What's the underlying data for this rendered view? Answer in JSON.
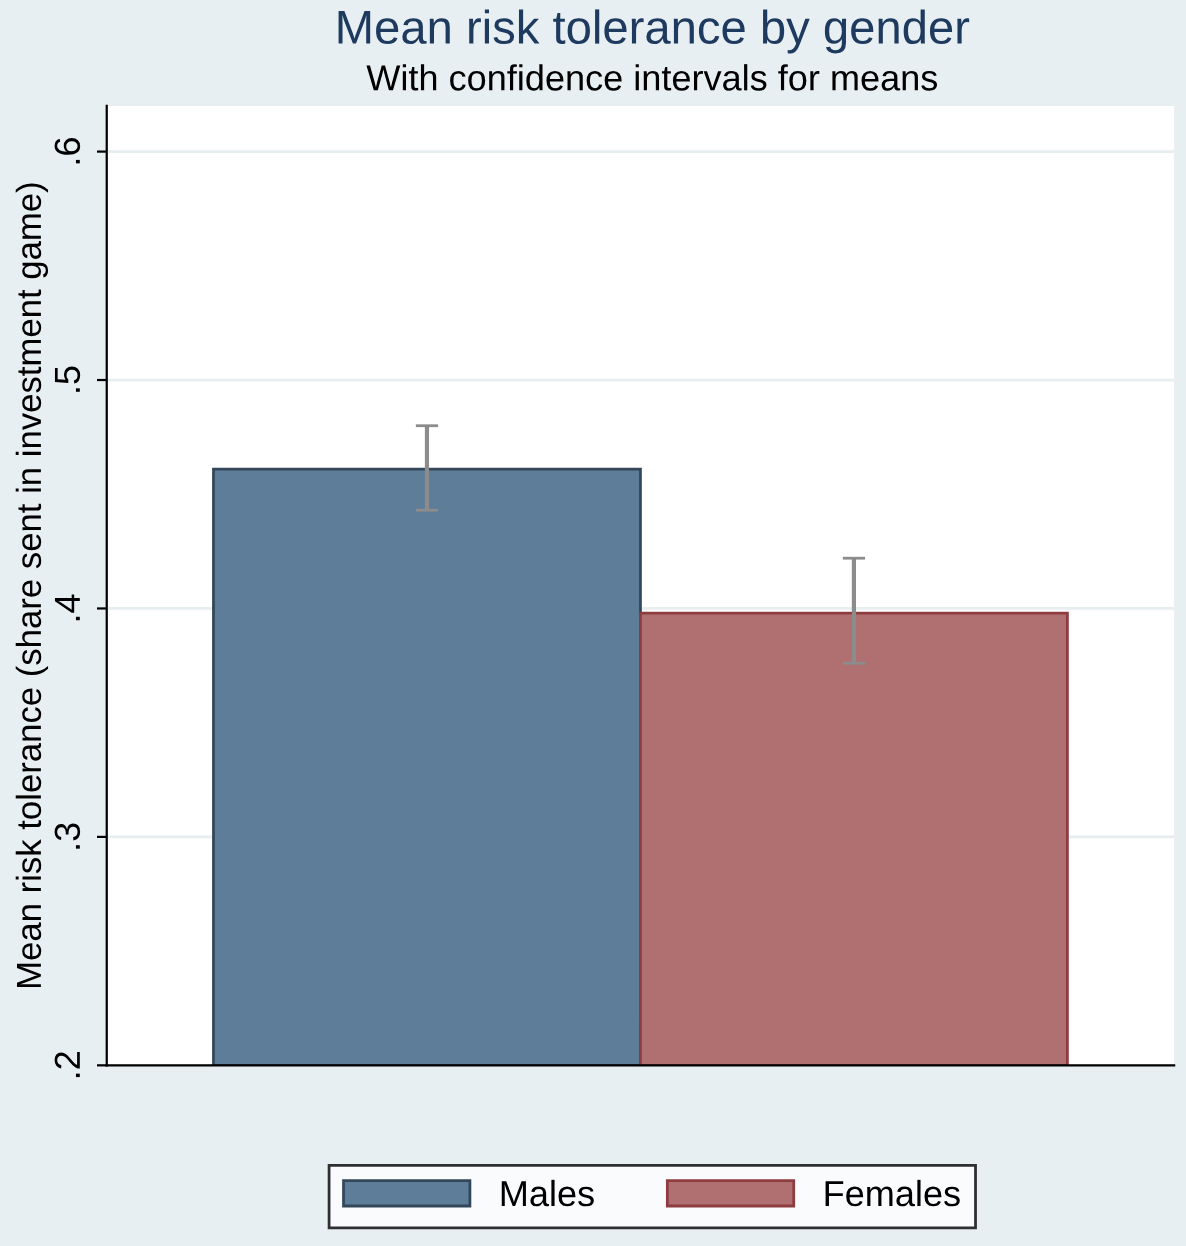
{
  "chart_data": {
    "type": "bar",
    "title": "Mean risk tolerance by gender",
    "subtitle": "With confidence intervals for means",
    "ylabel": "Mean risk tolerance (share sent in investment game)",
    "categories": [
      null
    ],
    "series": [
      {
        "name": "Males",
        "color": "#5e7d99",
        "values": [
          0.461
        ],
        "errors": [
          [
            0.443,
            0.48
          ]
        ]
      },
      {
        "name": "Females",
        "color": "#b07072",
        "values": [
          0.398
        ],
        "errors": [
          [
            0.376,
            0.422
          ]
        ]
      }
    ],
    "ylim": [
      0.2,
      0.62
    ],
    "yticks": [
      {
        "value": 0.2,
        "label": ".2"
      },
      {
        "value": 0.3,
        "label": ".3"
      },
      {
        "value": 0.4,
        "label": ".4"
      },
      {
        "value": 0.5,
        "label": ".5"
      },
      {
        "value": 0.6,
        "label": ".6"
      }
    ],
    "grid": "y",
    "legend": "bottom"
  }
}
